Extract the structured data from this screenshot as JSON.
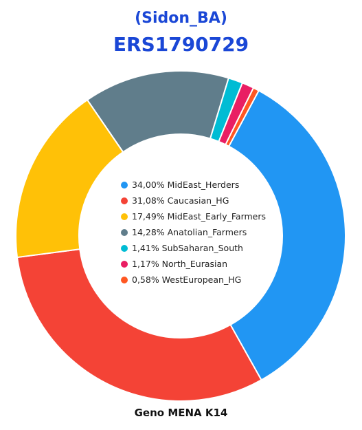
{
  "header": {
    "subtitle": "(Sidon_BA)",
    "title": "ERS1790729"
  },
  "footer": {
    "caption": "Geno MENA K14"
  },
  "chart_data": {
    "type": "pie",
    "variant": "donut",
    "subtitle": "(Sidon_BA)",
    "title": "ERS1790729",
    "caption": "Geno MENA K14",
    "slices": [
      {
        "label": "34,00% MidEast_Herders",
        "name": "MidEast_Herders",
        "value": 34.0,
        "color": "#2196f3"
      },
      {
        "label": "31,08% Caucasian_HG",
        "name": "Caucasian_HG",
        "value": 31.08,
        "color": "#f44336"
      },
      {
        "label": "17,49% MidEast_Early_Farmers",
        "name": "MidEast_Early_Farmers",
        "value": 17.49,
        "color": "#ffc107"
      },
      {
        "label": "14,28% Anatolian_Farmers",
        "name": "Anatolian_Farmers",
        "value": 14.28,
        "color": "#607d8b"
      },
      {
        "label": "1,41% SubSaharan_South",
        "name": "SubSaharan_South",
        "value": 1.41,
        "color": "#00bcd4"
      },
      {
        "label": "1,17% North_Eurasian",
        "name": "North_Eurasian",
        "value": 1.17,
        "color": "#e91e63"
      },
      {
        "label": "0,58% WestEuropean_HG",
        "name": "WestEuropean_HG",
        "value": 0.58,
        "color": "#ff5722"
      }
    ],
    "legend_position": "center"
  }
}
